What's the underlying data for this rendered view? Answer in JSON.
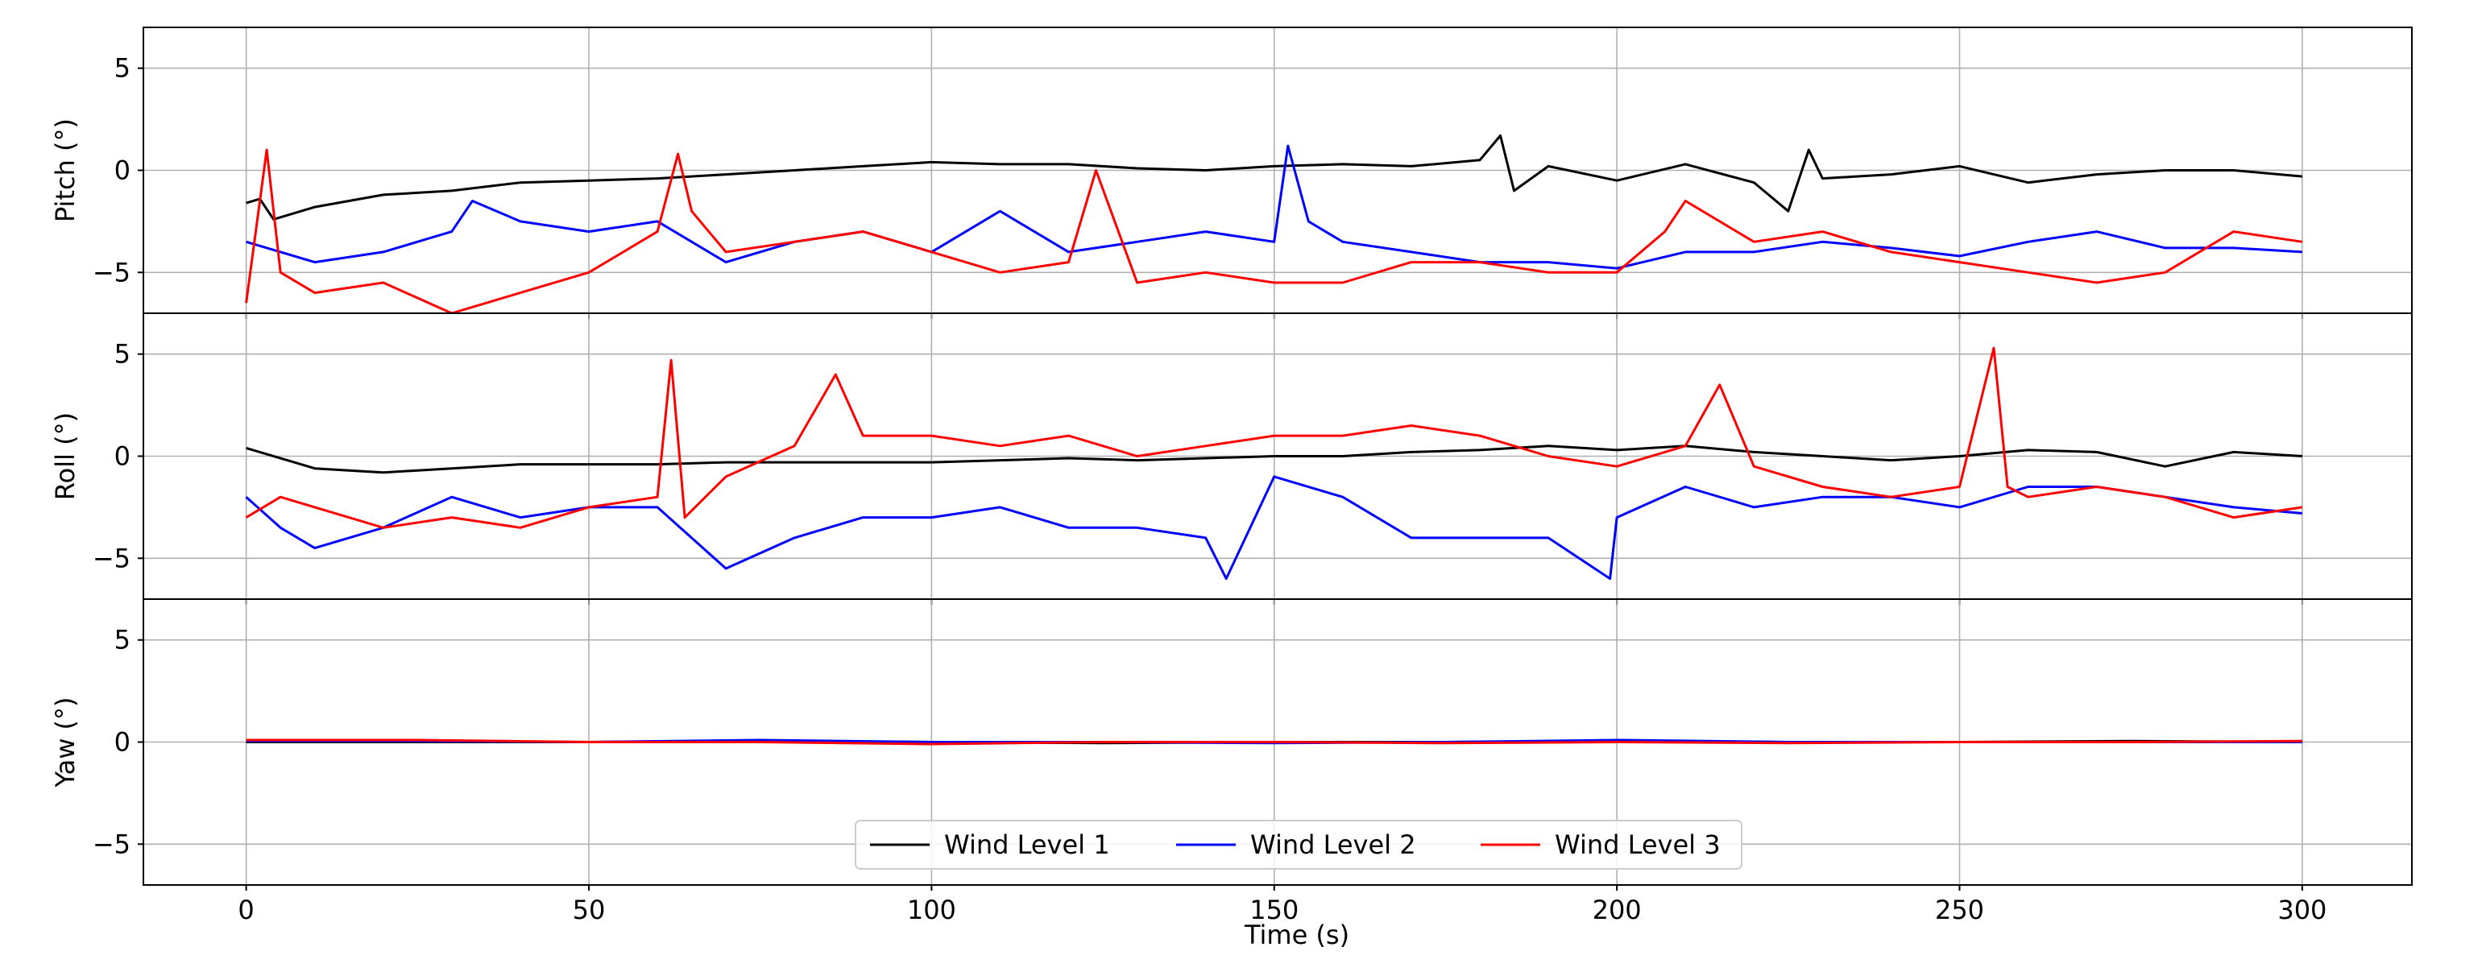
{
  "chart_data": {
    "type": "line",
    "xlabel": "Time (s)",
    "xlim": [
      -15,
      316
    ],
    "xticks": [
      0,
      50,
      100,
      150,
      200,
      250,
      300
    ],
    "xtick_labels": [
      "0",
      "50",
      "100",
      "150",
      "200",
      "250",
      "300"
    ],
    "grid": true,
    "legend": {
      "placement": "lower-center",
      "entries": [
        "Wind Level 1",
        "Wind Level 2",
        "Wind Level 3"
      ]
    },
    "series_style": [
      {
        "name": "Wind Level 1",
        "color": "#000000"
      },
      {
        "name": "Wind Level 2",
        "color": "#0000ff"
      },
      {
        "name": "Wind Level 3",
        "color": "#ff0000"
      }
    ],
    "panels": [
      {
        "ylabel": "Pitch (°)",
        "ylim": [
          -7,
          7
        ],
        "yticks": [
          5,
          0,
          -5
        ],
        "ytick_labels": [
          "5",
          "0",
          "−5"
        ],
        "series": [
          {
            "name": "Wind Level 1",
            "x": [
              0,
              2,
              4,
              10,
              20,
              30,
              40,
              50,
              60,
              70,
              80,
              90,
              100,
              110,
              120,
              130,
              140,
              150,
              160,
              170,
              180,
              183,
              185,
              190,
              200,
              210,
              220,
              225,
              228,
              230,
              240,
              250,
              260,
              270,
              280,
              290,
              300
            ],
            "values": [
              -1.6,
              -1.4,
              -2.4,
              -1.8,
              -1.2,
              -1.0,
              -0.6,
              -0.5,
              -0.4,
              -0.2,
              0.0,
              0.2,
              0.4,
              0.3,
              0.3,
              0.1,
              0.0,
              0.2,
              0.3,
              0.2,
              0.5,
              1.7,
              -1.0,
              0.2,
              -0.5,
              0.3,
              -0.6,
              -2.0,
              1.0,
              -0.4,
              -0.2,
              0.2,
              -0.6,
              -0.2,
              0.0,
              0.0,
              -0.3
            ]
          },
          {
            "name": "Wind Level 2",
            "x": [
              0,
              5,
              10,
              20,
              30,
              33,
              40,
              50,
              60,
              70,
              80,
              90,
              100,
              110,
              120,
              130,
              140,
              150,
              152,
              155,
              160,
              170,
              180,
              190,
              200,
              210,
              220,
              230,
              240,
              250,
              260,
              270,
              280,
              290,
              300
            ],
            "values": [
              -3.5,
              -4.0,
              -4.5,
              -4.0,
              -3.0,
              -1.5,
              -2.5,
              -3.0,
              -2.5,
              -4.5,
              -3.5,
              -3.0,
              -4.0,
              -2.0,
              -4.0,
              -3.5,
              -3.0,
              -3.5,
              1.2,
              -2.5,
              -3.5,
              -4.0,
              -4.5,
              -4.5,
              -4.8,
              -4.0,
              -4.0,
              -3.5,
              -3.8,
              -4.2,
              -3.5,
              -3.0,
              -3.8,
              -3.8,
              -4.0
            ]
          },
          {
            "name": "Wind Level 3",
            "x": [
              0,
              2,
              3,
              5,
              10,
              20,
              30,
              40,
              50,
              60,
              63,
              65,
              70,
              80,
              90,
              100,
              110,
              120,
              124,
              130,
              140,
              150,
              160,
              170,
              180,
              190,
              200,
              207,
              210,
              220,
              230,
              240,
              250,
              260,
              270,
              280,
              290,
              300
            ],
            "values": [
              -6.5,
              -1.5,
              1.0,
              -5.0,
              -6.0,
              -5.5,
              -7.0,
              -6.0,
              -5.0,
              -3.0,
              0.8,
              -2.0,
              -4.0,
              -3.5,
              -3.0,
              -4.0,
              -5.0,
              -4.5,
              0.0,
              -5.5,
              -5.0,
              -5.5,
              -5.5,
              -4.5,
              -4.5,
              -5.0,
              -5.0,
              -3.0,
              -1.5,
              -3.5,
              -3.0,
              -4.0,
              -4.5,
              -5.0,
              -5.5,
              -5.0,
              -3.0,
              -3.5
            ]
          }
        ]
      },
      {
        "ylabel": "Roll (°)",
        "ylim": [
          -7,
          7
        ],
        "yticks": [
          5,
          0,
          -5
        ],
        "ytick_labels": [
          "5",
          "0",
          "−5"
        ],
        "series": [
          {
            "name": "Wind Level 1",
            "x": [
              0,
              10,
              20,
              30,
              40,
              50,
              60,
              70,
              80,
              90,
              100,
              110,
              120,
              130,
              140,
              150,
              160,
              170,
              180,
              190,
              200,
              210,
              220,
              230,
              240,
              250,
              260,
              270,
              280,
              290,
              300
            ],
            "values": [
              0.4,
              -0.6,
              -0.8,
              -0.6,
              -0.4,
              -0.4,
              -0.4,
              -0.3,
              -0.3,
              -0.3,
              -0.3,
              -0.2,
              -0.1,
              -0.2,
              -0.1,
              0.0,
              0.0,
              0.2,
              0.3,
              0.5,
              0.3,
              0.5,
              0.2,
              0.0,
              -0.2,
              0.0,
              0.3,
              0.2,
              -0.5,
              0.2,
              0.0
            ]
          },
          {
            "name": "Wind Level 2",
            "x": [
              0,
              5,
              10,
              20,
              30,
              40,
              50,
              60,
              70,
              80,
              90,
              100,
              110,
              120,
              130,
              140,
              143,
              150,
              160,
              170,
              180,
              190,
              199,
              200,
              210,
              220,
              230,
              240,
              250,
              260,
              270,
              280,
              290,
              300
            ],
            "values": [
              -2.0,
              -3.5,
              -4.5,
              -3.5,
              -2.0,
              -3.0,
              -2.5,
              -2.5,
              -5.5,
              -4.0,
              -3.0,
              -3.0,
              -2.5,
              -3.5,
              -3.5,
              -4.0,
              -6.0,
              -1.0,
              -2.0,
              -4.0,
              -4.0,
              -4.0,
              -6.0,
              -3.0,
              -1.5,
              -2.5,
              -2.0,
              -2.0,
              -2.5,
              -1.5,
              -1.5,
              -2.0,
              -2.5,
              -2.8
            ]
          },
          {
            "name": "Wind Level 3",
            "x": [
              0,
              5,
              10,
              20,
              30,
              40,
              50,
              60,
              62,
              64,
              70,
              80,
              86,
              90,
              100,
              110,
              120,
              130,
              140,
              150,
              160,
              170,
              180,
              190,
              200,
              210,
              215,
              220,
              230,
              240,
              250,
              255,
              257,
              260,
              270,
              280,
              290,
              300
            ],
            "values": [
              -3.0,
              -2.0,
              -2.5,
              -3.5,
              -3.0,
              -3.5,
              -2.5,
              -2.0,
              4.7,
              -3.0,
              -1.0,
              0.5,
              4.0,
              1.0,
              1.0,
              0.5,
              1.0,
              0.0,
              0.5,
              1.0,
              1.0,
              1.5,
              1.0,
              0.0,
              -0.5,
              0.5,
              3.5,
              -0.5,
              -1.5,
              -2.0,
              -1.5,
              5.3,
              -1.5,
              -2.0,
              -1.5,
              -2.0,
              -3.0,
              -2.5
            ]
          }
        ]
      },
      {
        "ylabel": "Yaw (°)",
        "ylim": [
          -7,
          7
        ],
        "yticks": [
          5,
          0,
          -5
        ],
        "ytick_labels": [
          "5",
          "0",
          "−5"
        ],
        "series": [
          {
            "name": "Wind Level 1",
            "x": [
              0,
              25,
              50,
              75,
              100,
              125,
              150,
              175,
              200,
              225,
              250,
              275,
              300
            ],
            "values": [
              0.0,
              0.0,
              0.0,
              0.05,
              0.0,
              -0.05,
              0.0,
              0.0,
              0.05,
              0.0,
              0.0,
              0.05,
              0.0
            ]
          },
          {
            "name": "Wind Level 2",
            "x": [
              0,
              25,
              50,
              75,
              100,
              125,
              150,
              175,
              200,
              225,
              250,
              275,
              300
            ],
            "values": [
              0.05,
              0.05,
              0.0,
              0.1,
              0.0,
              0.0,
              -0.05,
              0.0,
              0.1,
              0.0,
              0.0,
              0.0,
              0.0
            ]
          },
          {
            "name": "Wind Level 3",
            "x": [
              0,
              25,
              50,
              75,
              100,
              125,
              150,
              175,
              200,
              225,
              250,
              275,
              300
            ],
            "values": [
              0.1,
              0.1,
              0.0,
              0.0,
              -0.1,
              0.0,
              0.0,
              -0.05,
              0.0,
              -0.05,
              0.0,
              0.0,
              0.05
            ]
          }
        ]
      }
    ]
  }
}
